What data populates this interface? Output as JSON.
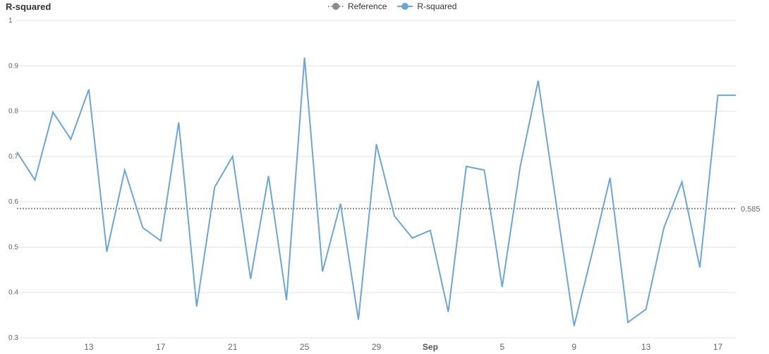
{
  "chart_data": {
    "type": "line",
    "title": "R-squared",
    "xlabel": "",
    "ylabel": "",
    "ylim": [
      0.3,
      1.0
    ],
    "y_ticks": [
      "0.3",
      "0.4",
      "0.5",
      "0.6",
      "0.7",
      "0.8",
      "0.9",
      "1"
    ],
    "x_ticks": [
      "13",
      "17",
      "21",
      "25",
      "29",
      "Sep",
      "5",
      "9",
      "13",
      "17"
    ],
    "x_tick_month_flags": [
      false,
      false,
      false,
      false,
      false,
      true,
      false,
      false,
      false,
      false
    ],
    "legend": [
      {
        "name": "Reference",
        "style": "dotted-marker",
        "color": "#8c8c8c"
      },
      {
        "name": "R-squared",
        "style": "line-marker",
        "color": "#6aa7d8"
      }
    ],
    "grid": true,
    "legend_position": "top-center",
    "series": [
      {
        "name": "R-squared",
        "color": "#6aa7d8",
        "x": [
          "Aug 9",
          "Aug 10",
          "Aug 11",
          "Aug 12",
          "Aug 13",
          "Aug 14",
          "Aug 15",
          "Aug 16",
          "Aug 17",
          "Aug 18",
          "Aug 19",
          "Aug 20",
          "Aug 21",
          "Aug 22",
          "Aug 23",
          "Aug 24",
          "Aug 25",
          "Aug 26",
          "Aug 27",
          "Aug 28",
          "Aug 29",
          "Aug 30",
          "Aug 31",
          "Sep 1",
          "Sep 2",
          "Sep 3",
          "Sep 4",
          "Sep 5",
          "Sep 6",
          "Sep 7",
          "Sep 8",
          "Sep 9",
          "Sep 10",
          "Sep 11",
          "Sep 12",
          "Sep 13",
          "Sep 14",
          "Sep 15",
          "Sep 16",
          "Sep 17",
          "Sep 18"
        ],
        "values": [
          0.71,
          0.648,
          0.798,
          0.738,
          0.848,
          0.49,
          0.67,
          0.543,
          0.514,
          0.775,
          0.369,
          0.632,
          0.7,
          0.43,
          0.657,
          0.383,
          0.918,
          0.446,
          0.596,
          0.34,
          0.727,
          0.569,
          0.52,
          0.537,
          0.357,
          0.678,
          0.67,
          0.412,
          0.677,
          0.867,
          0.597,
          0.326,
          0.486,
          0.653,
          0.334,
          0.363,
          0.543,
          0.644,
          0.455,
          0.835,
          0.835
        ]
      }
    ],
    "reference": {
      "name": "Reference",
      "value": 0.585,
      "label": "0.585",
      "color": "#8c8c8c"
    }
  }
}
